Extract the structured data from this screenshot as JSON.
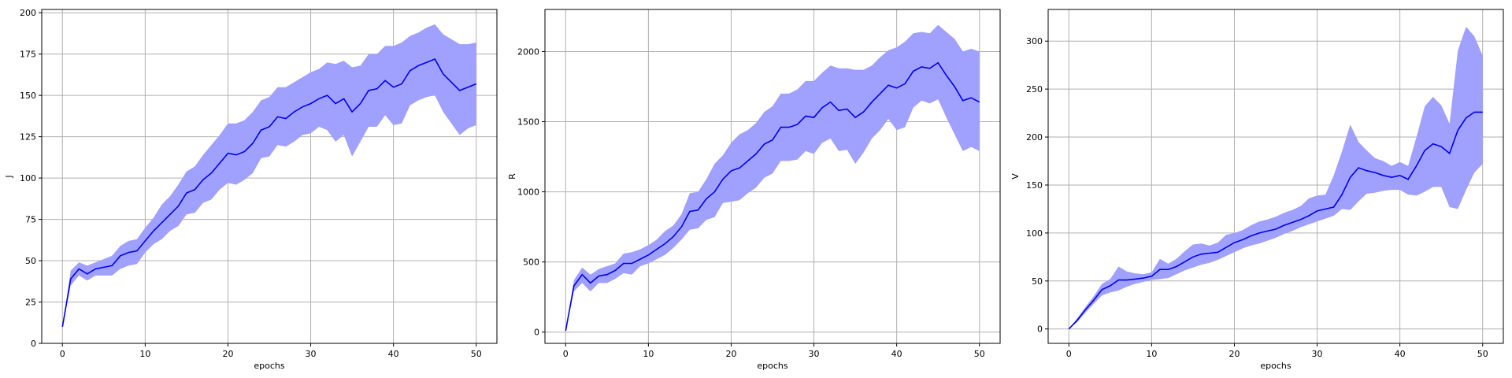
{
  "chart_data": [
    {
      "type": "line",
      "xlabel": "epochs",
      "ylabel": "J",
      "xlim": [
        -2.5,
        52.5
      ],
      "ylim": [
        0,
        202
      ],
      "xticks": [
        0,
        10,
        20,
        30,
        40,
        50
      ],
      "yticks": [
        0,
        25,
        50,
        75,
        100,
        125,
        150,
        175,
        200
      ],
      "grid": true,
      "line_color": "#0000ee",
      "band_color": "#a0a0ff",
      "x": [
        0,
        1,
        2,
        3,
        4,
        5,
        6,
        7,
        8,
        9,
        10,
        11,
        12,
        13,
        14,
        15,
        16,
        17,
        18,
        19,
        20,
        21,
        22,
        23,
        24,
        25,
        26,
        27,
        28,
        29,
        30,
        31,
        32,
        33,
        34,
        35,
        36,
        37,
        38,
        39,
        40,
        41,
        42,
        43,
        44,
        45,
        46,
        47,
        48,
        49,
        50
      ],
      "series": [
        {
          "values": [
            10,
            39,
            45,
            42,
            45,
            46,
            47,
            53,
            55,
            56,
            62,
            68,
            73,
            78,
            83,
            91,
            93,
            99,
            103,
            109,
            115,
            114,
            116,
            121,
            129,
            131,
            137,
            136,
            140,
            143,
            145,
            148,
            150,
            145,
            148,
            140,
            145,
            153,
            154,
            159,
            155,
            157,
            165,
            168,
            170,
            172,
            163,
            158,
            153,
            155,
            157
          ],
          "lower": [
            10,
            35,
            41,
            38,
            41,
            41,
            41,
            45,
            47,
            48,
            55,
            60,
            63,
            68,
            71,
            78,
            79,
            85,
            87,
            93,
            97,
            96,
            99,
            103,
            112,
            113,
            120,
            119,
            122,
            126,
            127,
            131,
            129,
            122,
            126,
            113,
            122,
            131,
            131,
            138,
            132,
            133,
            144,
            147,
            149,
            150,
            140,
            133,
            126,
            130,
            132
          ],
          "upper": [
            10,
            44,
            49,
            47,
            49,
            51,
            53,
            59,
            62,
            63,
            70,
            76,
            84,
            89,
            96,
            104,
            107,
            114,
            120,
            126,
            133,
            133,
            135,
            140,
            147,
            149,
            155,
            155,
            158,
            161,
            164,
            166,
            170,
            169,
            171,
            167,
            168,
            175,
            175,
            180,
            180,
            182,
            186,
            188,
            191,
            193,
            187,
            184,
            181,
            181,
            182
          ]
        }
      ]
    },
    {
      "type": "line",
      "xlabel": "epochs",
      "ylabel": "R",
      "xlim": [
        -2.5,
        52.5
      ],
      "ylim": [
        -80,
        2300
      ],
      "xticks": [
        0,
        10,
        20,
        30,
        40,
        50
      ],
      "yticks": [
        0,
        500,
        1000,
        1500,
        2000
      ],
      "grid": true,
      "line_color": "#0000ee",
      "band_color": "#a0a0ff",
      "x": [
        0,
        1,
        2,
        3,
        4,
        5,
        6,
        7,
        8,
        9,
        10,
        11,
        12,
        13,
        14,
        15,
        16,
        17,
        18,
        19,
        20,
        21,
        22,
        23,
        24,
        25,
        26,
        27,
        28,
        29,
        30,
        31,
        32,
        33,
        34,
        35,
        36,
        37,
        38,
        39,
        40,
        41,
        42,
        43,
        44,
        45,
        46,
        47,
        48,
        49,
        50
      ],
      "series": [
        {
          "values": [
            10,
            330,
            410,
            350,
            400,
            410,
            440,
            490,
            490,
            520,
            550,
            590,
            630,
            680,
            750,
            860,
            870,
            950,
            1000,
            1090,
            1150,
            1170,
            1220,
            1270,
            1340,
            1370,
            1460,
            1460,
            1480,
            1540,
            1530,
            1600,
            1640,
            1580,
            1590,
            1530,
            1570,
            1640,
            1700,
            1760,
            1740,
            1770,
            1860,
            1890,
            1880,
            1920,
            1830,
            1750,
            1650,
            1670,
            1640
          ],
          "lower": [
            10,
            290,
            350,
            290,
            350,
            350,
            380,
            420,
            410,
            470,
            490,
            520,
            550,
            600,
            660,
            730,
            740,
            800,
            820,
            920,
            930,
            940,
            990,
            1030,
            1100,
            1130,
            1220,
            1220,
            1230,
            1290,
            1270,
            1350,
            1380,
            1290,
            1300,
            1200,
            1280,
            1380,
            1440,
            1520,
            1440,
            1460,
            1600,
            1650,
            1630,
            1660,
            1530,
            1410,
            1290,
            1320,
            1290
          ],
          "upper": [
            10,
            370,
            460,
            410,
            450,
            470,
            490,
            560,
            570,
            590,
            620,
            660,
            720,
            760,
            840,
            990,
            1000,
            1090,
            1200,
            1260,
            1350,
            1410,
            1440,
            1490,
            1570,
            1610,
            1700,
            1700,
            1730,
            1790,
            1790,
            1850,
            1900,
            1880,
            1880,
            1870,
            1870,
            1900,
            1960,
            2010,
            2030,
            2070,
            2130,
            2140,
            2130,
            2190,
            2140,
            2090,
            2000,
            2020,
            2000
          ]
        }
      ]
    },
    {
      "type": "line",
      "xlabel": "epochs",
      "ylabel": "V",
      "xlim": [
        -2.5,
        52.5
      ],
      "ylim": [
        -15,
        333
      ],
      "xticks": [
        0,
        10,
        20,
        30,
        40,
        50
      ],
      "yticks": [
        0,
        50,
        100,
        150,
        200,
        250,
        300
      ],
      "grid": true,
      "line_color": "#0000ee",
      "band_color": "#a0a0ff",
      "x": [
        0,
        1,
        2,
        3,
        4,
        5,
        6,
        7,
        8,
        9,
        10,
        11,
        12,
        13,
        14,
        15,
        16,
        17,
        18,
        19,
        20,
        21,
        22,
        23,
        24,
        25,
        26,
        27,
        28,
        29,
        30,
        31,
        32,
        33,
        34,
        35,
        36,
        37,
        38,
        39,
        40,
        41,
        42,
        43,
        44,
        45,
        46,
        47,
        48,
        49,
        50
      ],
      "series": [
        {
          "values": [
            0,
            9,
            20,
            30,
            41,
            45,
            51,
            51,
            52,
            53,
            55,
            62,
            62,
            65,
            70,
            75,
            78,
            79,
            80,
            85,
            90,
            93,
            97,
            100,
            102,
            104,
            108,
            111,
            114,
            118,
            123,
            125,
            127,
            140,
            158,
            168,
            165,
            163,
            160,
            158,
            160,
            156,
            170,
            186,
            193,
            190,
            183,
            207,
            220,
            226,
            226
          ],
          "lower": [
            0,
            7,
            17,
            26,
            35,
            38,
            40,
            44,
            47,
            49,
            51,
            52,
            53,
            57,
            61,
            64,
            67,
            69,
            72,
            76,
            80,
            84,
            87,
            89,
            92,
            95,
            99,
            102,
            106,
            109,
            112,
            115,
            118,
            125,
            124,
            133,
            141,
            142,
            144,
            145,
            145,
            140,
            139,
            143,
            148,
            148,
            127,
            125,
            145,
            163,
            172
          ],
          "upper": [
            0,
            11,
            23,
            34,
            47,
            52,
            65,
            60,
            58,
            57,
            59,
            73,
            68,
            73,
            81,
            88,
            89,
            87,
            90,
            98,
            100,
            103,
            108,
            112,
            114,
            117,
            121,
            124,
            128,
            136,
            139,
            140,
            160,
            185,
            213,
            195,
            186,
            178,
            175,
            170,
            174,
            170,
            200,
            232,
            242,
            233,
            214,
            290,
            315,
            305,
            285
          ]
        }
      ]
    }
  ]
}
